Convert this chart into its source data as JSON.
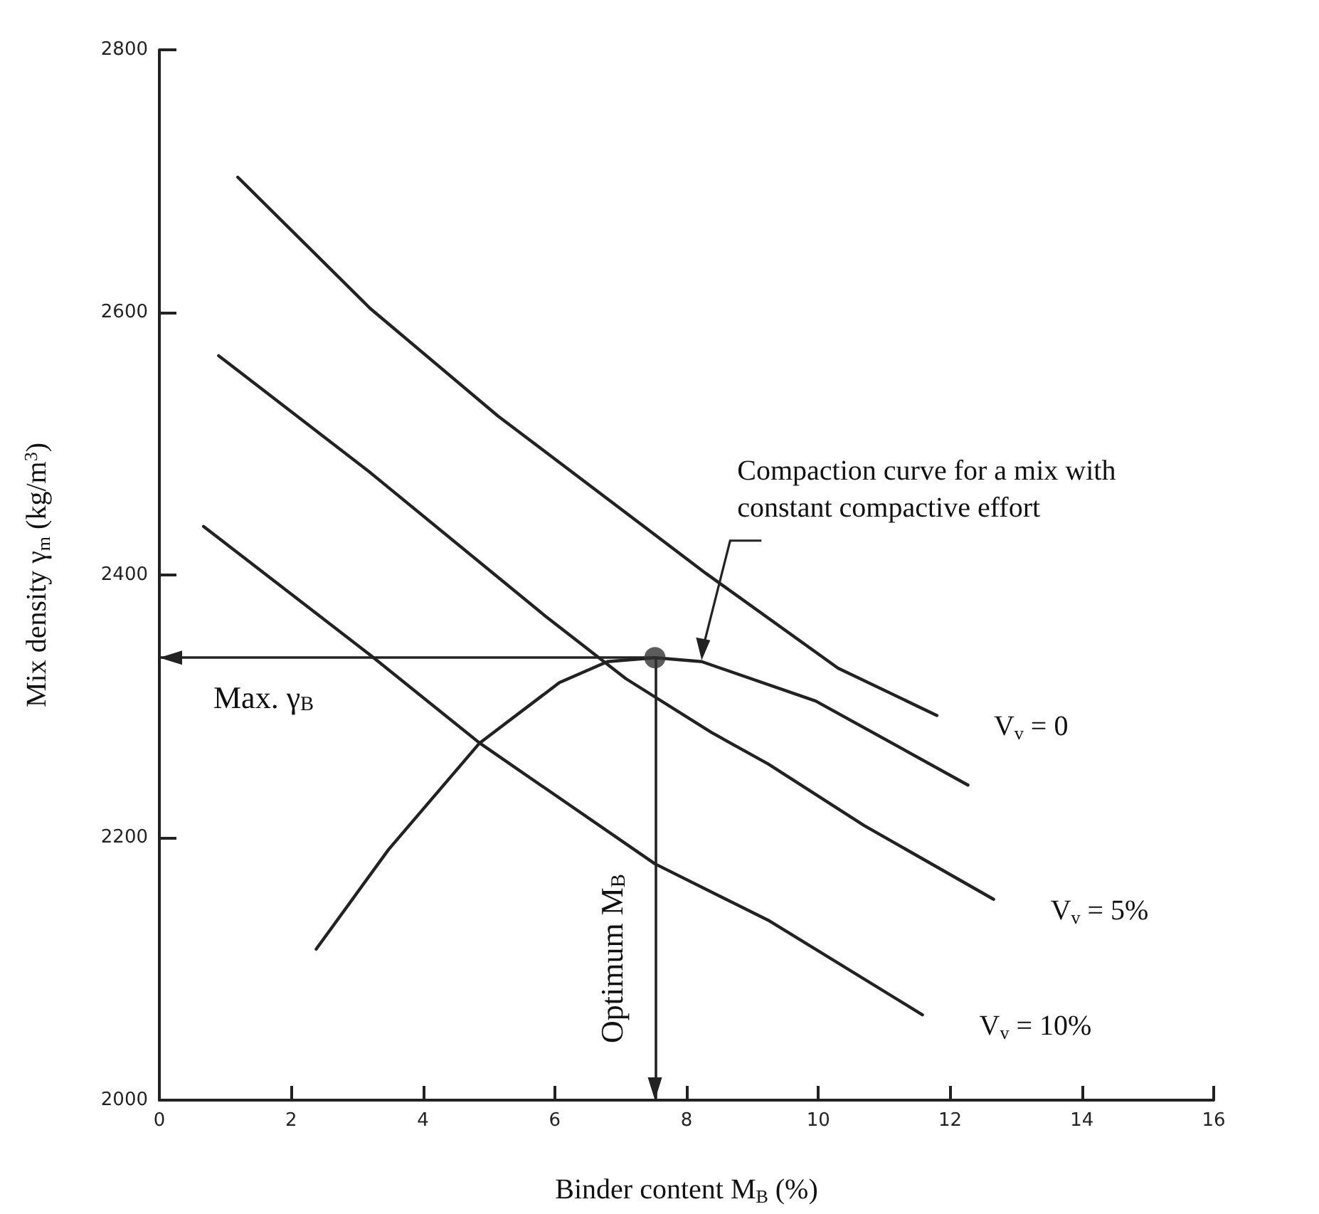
{
  "chart_data": {
    "type": "line",
    "xlabel": "Binder content M$_{B}$ (%)",
    "ylabel": "Mix density γ$_{m}$ (kg/m$^{3}$)",
    "xlim": [
      0,
      16
    ],
    "xticks": [
      0,
      2,
      4,
      6,
      8,
      10,
      12,
      14,
      16
    ],
    "ylim": [
      2000,
      2800
    ],
    "yticks": [
      2000,
      2200,
      2400,
      2600,
      2800
    ],
    "grid": false,
    "legend": false,
    "marker": "none",
    "line_style": "solid",
    "series": [
      {
        "name": "V$_{v}$ = 0",
        "color": "#222222",
        "x": [
          1.19,
          3.2,
          5.14,
          8.3,
          10.3,
          11.8
        ],
        "values": [
          2703,
          2603,
          2521,
          2401,
          2329,
          2293
        ]
      },
      {
        "name": "V$_{v}$ = 5%",
        "color": "#222222",
        "x": [
          0.9,
          3.2,
          5.85,
          7.08,
          8.38,
          9.24,
          10.7,
          12.66
        ],
        "values": [
          2567,
          2478,
          2369,
          2321,
          2280,
          2256,
          2209,
          2153
        ]
      },
      {
        "name": "V$_{v}$ = 10%",
        "color": "#222222",
        "x": [
          0.67,
          3.2,
          4.86,
          7.52,
          9.24,
          11.58
        ],
        "values": [
          2437,
          2339,
          2272,
          2180,
          2137,
          2065
        ]
      },
      {
        "color": "#222222",
        "x": [
          2.38,
          3.48,
          4.86,
          6.07,
          6.8,
          7.52,
          8.23,
          9.96,
          12.27
        ],
        "values": [
          2115,
          2191,
          2272,
          2318,
          2334,
          2337,
          2334,
          2304,
          2240
        ]
      },
      {
        "type": "scatter",
        "marker": "circle",
        "color": "#333333",
        "x": [
          7.52
        ],
        "values": [
          2337
        ]
      }
    ],
    "ref_lines": [
      {
        "axis": "y",
        "value": 2337,
        "label": "Max. γ$_{B}$",
        "color": "#222222"
      },
      {
        "axis": "x",
        "value": 7.52,
        "label": "Optimum M$_{B}$",
        "color": "#222222"
      }
    ],
    "annotations": [
      "Compaction curve for a mix with\nconstant compactive effort"
    ]
  }
}
